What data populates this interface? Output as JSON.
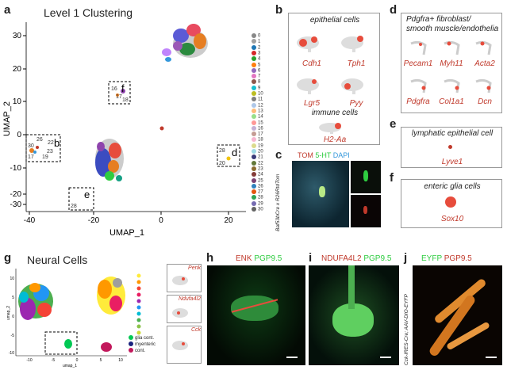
{
  "panels": {
    "a": {
      "label": "a",
      "title": "Level 1 Clustering",
      "xlabel": "UMAP_1",
      "ylabel": "UMAP_2",
      "xticks": [
        "-40",
        "-20",
        "0",
        "20"
      ],
      "yticks": [
        "30",
        "20",
        "10",
        "0",
        "-10",
        "-20",
        "-30"
      ],
      "box_labels": [
        "f",
        "b",
        "d",
        "e"
      ],
      "cluster_numbers": {
        "f": [
          "16",
          "17",
          "18"
        ],
        "b": [
          "26",
          "30",
          "22",
          "23",
          "17",
          "19"
        ],
        "d": [
          "28",
          "20"
        ],
        "e": [
          "28"
        ]
      }
    },
    "b": {
      "label": "b",
      "top_title": "epithelial cells",
      "genes": [
        "Cdh1",
        "Tph1",
        "Lgr5",
        "Pyy"
      ],
      "immune_title": "immune cells",
      "immune_gene": "H2-Aa"
    },
    "c": {
      "label": "c",
      "channels": {
        "tom": "TOM",
        "ht": "5-HT",
        "dapi": "DAPI"
      },
      "side": "Baf53bCre x R26RtdTom"
    },
    "d": {
      "label": "d",
      "title_line1": "Pdgfra+ fibroblast/",
      "title_line2": "smooth muscle/endothelia",
      "genes": [
        "Pecam1",
        "Myh11",
        "Acta2",
        "Pdgfra",
        "Col1a1",
        "Dcn"
      ]
    },
    "e": {
      "label": "e",
      "title": "lymphatic epithelial cell",
      "gene": "Lyve1"
    },
    "f": {
      "label": "f",
      "title": "enteric glia cells",
      "gene": "Sox10"
    },
    "g": {
      "label": "g",
      "title": "Neural Cells",
      "xlabel": "umap_1",
      "ylabel": "umap_2",
      "xticks": [
        "-10",
        "-5",
        "0",
        "5",
        "10"
      ],
      "yticks": [
        "10",
        "5",
        "0",
        "-5",
        "-10"
      ],
      "legend": [
        "glia cont.",
        "myenteric",
        "cont."
      ],
      "side_genes": [
        "Penk",
        "Ndufa4l2",
        "Cck"
      ]
    },
    "h": {
      "label": "h",
      "stain1": "ENK",
      "stain2": "PGP9.5"
    },
    "i": {
      "label": "i",
      "stain1": "NDUFA4L2",
      "stain2": "PGP9.5"
    },
    "j": {
      "label": "j",
      "stain1": "EYFP",
      "stain2": "PGP9.5",
      "side": "Cck-IRES-Cre; AAV-DIO-EYFP"
    }
  },
  "cluster_legend": [
    "0",
    "1",
    "2",
    "3",
    "4",
    "5",
    "6",
    "7",
    "8",
    "9",
    "10",
    "11",
    "12",
    "13",
    "14",
    "15",
    "16",
    "17",
    "18",
    "19",
    "20",
    "21",
    "22",
    "23",
    "24",
    "25",
    "26",
    "27",
    "28",
    "29",
    "30"
  ],
  "colors": {
    "red": "#c0392b",
    "green": "#2ecc40",
    "orange": "#e67e22"
  }
}
